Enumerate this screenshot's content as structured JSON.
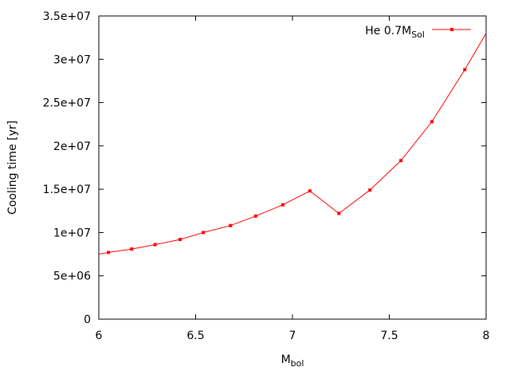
{
  "chart_data": {
    "type": "line",
    "xlabel": "M",
    "xlabel_sub": "bol",
    "ylabel": "Cooling time [yr]",
    "xlim": [
      6,
      8
    ],
    "ylim": [
      0,
      35000000
    ],
    "x_ticks": [
      "6",
      "6.5",
      "7",
      "7.5",
      "8"
    ],
    "y_ticks": [
      "0",
      "5e+06",
      "1e+07",
      "1.5e+07",
      "2e+07",
      "2.5e+07",
      "3e+07",
      "3.5e+07"
    ],
    "legend_position": "top-right",
    "series": [
      {
        "name": "He 0.7M",
        "name_sub": "Sol",
        "color": "#ff0000",
        "x": [
          5.95,
          6.05,
          6.17,
          6.29,
          6.42,
          6.54,
          6.68,
          6.81,
          6.95,
          7.09,
          7.24,
          7.4,
          7.56,
          7.72,
          7.89,
          8.0
        ],
        "y": [
          7300000,
          7700000,
          8100000,
          8600000,
          9200000,
          10000000,
          10800000,
          11900000,
          13200000,
          14800000,
          12200000,
          14900000,
          18300000,
          22800000,
          28800000,
          33000000
        ],
        "markers": [
          false,
          true,
          true,
          true,
          true,
          true,
          true,
          true,
          true,
          true,
          true,
          true,
          true,
          true,
          true,
          false
        ]
      }
    ]
  }
}
